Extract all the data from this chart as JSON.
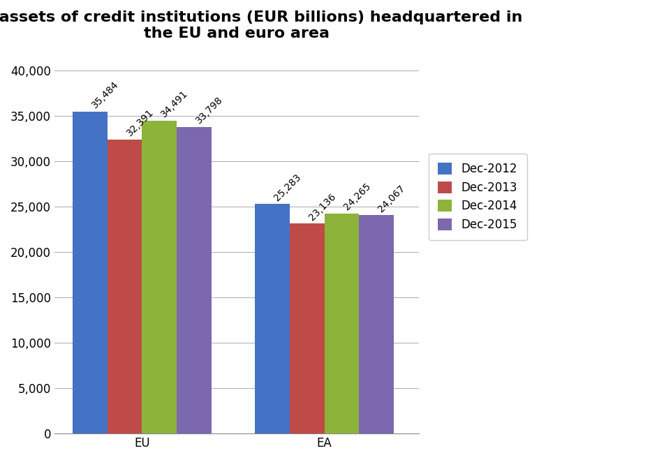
{
  "title": "Total assets of credit institutions (EUR billions) headquartered in\nthe EU and euro area",
  "categories": [
    "EU",
    "EA"
  ],
  "series": [
    {
      "label": "Dec-2012",
      "values": [
        35484,
        25283
      ],
      "color": "#4472C4"
    },
    {
      "label": "Dec-2013",
      "values": [
        32391,
        23136
      ],
      "color": "#BE4B48"
    },
    {
      "label": "Dec-2014",
      "values": [
        34491,
        24265
      ],
      "color": "#8DB33A"
    },
    {
      "label": "Dec-2015",
      "values": [
        33798,
        24067
      ],
      "color": "#7B68AE"
    }
  ],
  "ylim": [
    0,
    42000
  ],
  "yticks": [
    0,
    5000,
    10000,
    15000,
    20000,
    25000,
    30000,
    35000,
    40000
  ],
  "bar_width": 0.19,
  "title_fontsize": 16,
  "tick_fontsize": 12,
  "label_fontsize": 10,
  "legend_fontsize": 12,
  "background_color": "#FFFFFF",
  "grid_color": "#AAAAAA",
  "annotation_rotation": 45,
  "group_centers": [
    0.38,
    1.38
  ]
}
